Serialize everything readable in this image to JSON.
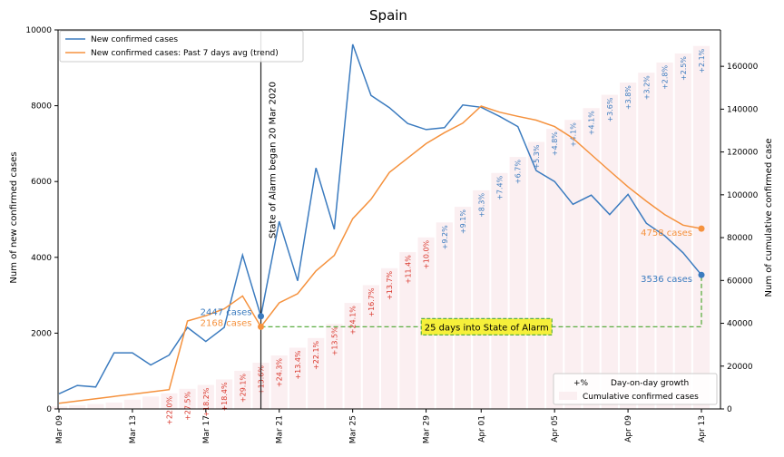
{
  "chart_data": {
    "type": "bar+line",
    "title": "Spain",
    "ylabel_left": "Num of new confirmed cases",
    "ylabel_right": "Num of cumulative confirmed case",
    "dates": [
      "Mar 09",
      "Mar 10",
      "Mar 11",
      "Mar 12",
      "Mar 13",
      "Mar 14",
      "Mar 15",
      "Mar 16",
      "Mar 17",
      "Mar 18",
      "Mar 19",
      "Mar 20",
      "Mar 21",
      "Mar 22",
      "Mar 23",
      "Mar 24",
      "Mar 25",
      "Mar 26",
      "Mar 27",
      "Mar 28",
      "Mar 29",
      "Mar 30",
      "Mar 31",
      "Apr 01",
      "Apr 02",
      "Apr 03",
      "Apr 04",
      "Apr 05",
      "Apr 06",
      "Apr 07",
      "Apr 08",
      "Apr 09",
      "Apr 10",
      "Apr 11",
      "Apr 12",
      "Apr 13"
    ],
    "xtick_labels": [
      "Mar 09",
      "Mar 13",
      "Mar 17",
      "Mar 21",
      "Mar 25",
      "Mar 29",
      "Apr 01",
      "Apr 05",
      "Apr 09",
      "Apr 13"
    ],
    "xtick_indices": [
      0,
      4,
      8,
      12,
      16,
      20,
      23,
      27,
      31,
      35
    ],
    "ylim_left": [
      0,
      10000
    ],
    "yticks_left": [
      0,
      2000,
      4000,
      6000,
      8000,
      10000
    ],
    "ylim_right": [
      0,
      177000
    ],
    "yticks_right": [
      0,
      20000,
      40000,
      60000,
      80000,
      100000,
      120000,
      140000,
      160000
    ],
    "series": [
      {
        "name": "New confirmed cases",
        "color": "#3b7bbf",
        "values": [
          400,
          620,
          580,
          1480,
          1480,
          1160,
          1420,
          2150,
          1780,
          2150,
          4060,
          2447,
          4950,
          3380,
          6360,
          4740,
          9620,
          8270,
          7950,
          7530,
          7370,
          7420,
          8020,
          7960,
          7720,
          7450,
          6290,
          6000,
          5400,
          5640,
          5130,
          5660,
          4900,
          4570,
          4120,
          3536
        ]
      },
      {
        "name": "New confirmed cases: Past 7 days avg (trend)",
        "color": "#f5923e",
        "values": [
          150,
          210,
          270,
          330,
          390,
          450,
          510,
          2320,
          2460,
          2640,
          2980,
          2168,
          2800,
          3040,
          3640,
          4050,
          5020,
          5530,
          6240,
          6620,
          7000,
          7290,
          7540,
          7990,
          7830,
          7720,
          7620,
          7450,
          7140,
          6710,
          6280,
          5860,
          5480,
          5130,
          4850,
          4758
        ]
      }
    ],
    "cumulative": {
      "name": "Cumulative confirmed cases",
      "color": "#fbeff1",
      "values": [
        1200,
        1700,
        2300,
        3000,
        4300,
        5800,
        7300,
        9400,
        11200,
        13800,
        17800,
        21600,
        25000,
        28600,
        33100,
        39700,
        49500,
        57800,
        65700,
        73200,
        80100,
        87100,
        94400,
        102100,
        110200,
        117700,
        124700,
        130800,
        135000,
        140500,
        146700,
        152400,
        157000,
        161800,
        166000,
        169500
      ]
    },
    "growth_labels": [
      "",
      "",
      "",
      "",
      "",
      "",
      "+22.0%",
      "+27.5%",
      "+18.2%",
      "+18.4%",
      "+29.1%",
      "+13.6%",
      "+24.3%",
      "+13.4%",
      "+22.1%",
      "+13.5%",
      "+24.1%",
      "+16.7%",
      "+13.7%",
      "+11.4%",
      "+10.0%",
      "+9.2%",
      "+9.1%",
      "+8.3%",
      "+7.4%",
      "+6.7%",
      "+5.3%",
      "+4.8%",
      "+4.1%",
      "+4.1%",
      "+3.6%",
      "+3.8%",
      "+3.2%",
      "+2.8%",
      "+2.5%",
      "+2.1%"
    ],
    "growth_colors": {
      "high": "#d9362b",
      "low": "#3b7bbf"
    },
    "vline": {
      "index": 11,
      "label": "State of Alarm began 20 Mar 2020"
    },
    "annotations": {
      "start_blue": "2447 cases",
      "start_orange": "2168 cases",
      "end_blue": "3536 cases",
      "end_orange": "4758 cases",
      "box": "25 days into State of Alarm"
    },
    "legend_top": [
      "New confirmed cases",
      "New confirmed cases: Past 7 days avg (trend)"
    ],
    "legend_bottom": {
      "marker": "+%",
      "growth": "Day-on-day growth",
      "cumulative": "Cumulative confirmed cases"
    }
  }
}
